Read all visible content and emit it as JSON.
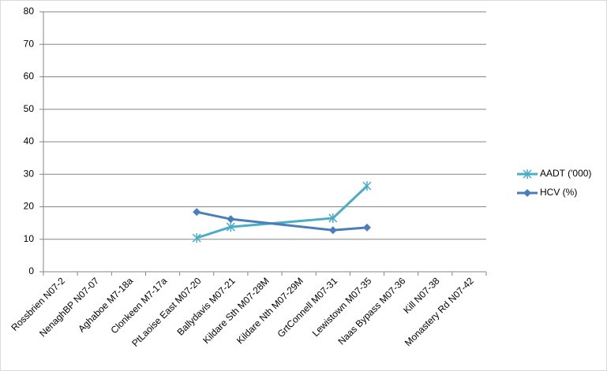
{
  "chart_data": {
    "type": "line",
    "categories": [
      "Rossbrien N07-2",
      "NenaghBP N07-07",
      "Aghaboe M7-18a",
      "Clonkeen M7-17a",
      "PtLaoise East M07-20",
      "Ballydavis M07-21",
      "Kildare Sth M07-28M",
      "Kildare Nth M07-29M",
      "GrtConnell M07-31",
      "Lewistown M07-35",
      "Naas Bypass M07-36",
      "Kill N07-38",
      "Monastery Rd N07-42"
    ],
    "series": [
      {
        "name": "AADT ('000)",
        "color": "#4bacc6",
        "marker": "star",
        "values": [
          null,
          null,
          null,
          null,
          10.4,
          13.8,
          null,
          null,
          16.5,
          26.4,
          null,
          null,
          null
        ]
      },
      {
        "name": "HCV (%)",
        "color": "#4a7ebb",
        "marker": "diamond",
        "values": [
          null,
          null,
          null,
          null,
          18.4,
          16.2,
          null,
          null,
          12.8,
          13.6,
          null,
          null,
          null
        ]
      }
    ],
    "connect_gaps": true,
    "ylim": [
      0,
      80
    ],
    "yticks": [
      0,
      10,
      20,
      30,
      40,
      50,
      60,
      70,
      80
    ],
    "grid": true,
    "legend": "right"
  }
}
